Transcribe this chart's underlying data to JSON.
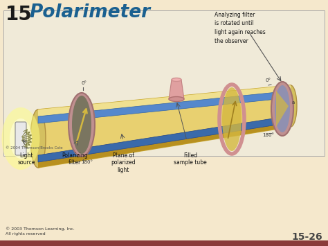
{
  "bg_color": "#f5e8cc",
  "title_number": "15",
  "title_text": "Polarimeter",
  "title_number_color": "#1a1a1a",
  "title_text_color": "#1a6090",
  "diagram_bg": "#f0e8d5",
  "slide_number": "15-26",
  "footer_left": "© 2003 Thomson Learning, Inc.\nAll rights reserved",
  "copyright_diagram": "© 2004 Thomson/Brooks Cole",
  "annotation_text": "Analyzing filter\nis rotated until\nlight again reaches\nthe observer",
  "labels": {
    "light_source": "Light\nsource",
    "polarizing_filter": "Polarizing\nfilter",
    "plane_of_polarized": "Plane of\npolarized\nlight",
    "filled_sample_tube": "Filled\nsample tube"
  },
  "bar_color": "#8b3a3a"
}
